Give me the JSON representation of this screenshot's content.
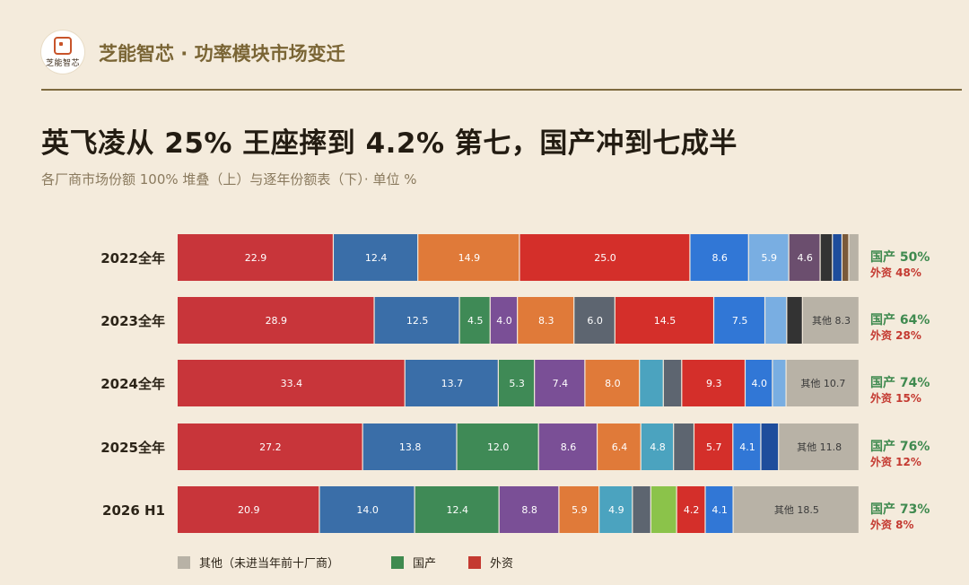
{
  "header": {
    "logo_text": "芝能智芯",
    "brand": "芝能智芯 · 功率模块市场变迁"
  },
  "title": "英飞凌从 25% 王座摔到 4.2% 第七，国产冲到七成半",
  "subtitle": "各厂商市场份额 100% 堆叠（上）与逐年份额表（下）· 单位 %",
  "colors": {
    "background": "#f4ebdc",
    "domestic_text": "#3f8a4f",
    "foreign_text": "#c43a31",
    "rule": "#7e6a3e",
    "segment_palette": {
      "red": "#c8353a",
      "blue": "#3a6ea8",
      "orange": "#e07a39",
      "red2": "#d42f2a",
      "blue2": "#3177d6",
      "lightblue": "#79aee2",
      "purple": "#7a4f96",
      "dark": "#333333",
      "navy": "#1e4d9c",
      "brown": "#7a5a3a",
      "gray": "#b8b2a6",
      "green": "#3f8a56",
      "slate": "#5d6570",
      "teal": "#4ba3bf",
      "lime": "#8bc34a",
      "mauve": "#6b4e6e"
    }
  },
  "chart_data": {
    "type": "bar",
    "orientation": "horizontal",
    "stacked": true,
    "normalized": true,
    "unit": "%",
    "categories": [
      "2022全年",
      "2023全年",
      "2024全年",
      "2025全年",
      "2026 H1"
    ],
    "rows": [
      {
        "category": "2022全年",
        "segments": [
          {
            "value": 22.9,
            "label": "22.9",
            "color": "red"
          },
          {
            "value": 12.4,
            "label": "12.4",
            "color": "blue"
          },
          {
            "value": 14.9,
            "label": "14.9",
            "color": "orange"
          },
          {
            "value": 25.0,
            "label": "25.0",
            "color": "red2"
          },
          {
            "value": 8.6,
            "label": "8.6",
            "color": "blue2"
          },
          {
            "value": 5.9,
            "label": "5.9",
            "color": "lightblue"
          },
          {
            "value": 4.6,
            "label": "4.6",
            "color": "mauve"
          },
          {
            "value": 1.8,
            "label": "",
            "color": "dark"
          },
          {
            "value": 1.4,
            "label": "",
            "color": "navy"
          },
          {
            "value": 1.0,
            "label": "",
            "color": "brown"
          },
          {
            "value": 1.5,
            "label": "",
            "color": "gray"
          }
        ],
        "domestic": "国产 50%",
        "foreign": "外资 48%"
      },
      {
        "category": "2023全年",
        "segments": [
          {
            "value": 28.9,
            "label": "28.9",
            "color": "red"
          },
          {
            "value": 12.5,
            "label": "12.5",
            "color": "blue"
          },
          {
            "value": 4.5,
            "label": "4.5",
            "color": "green"
          },
          {
            "value": 4.0,
            "label": "4.0",
            "color": "purple"
          },
          {
            "value": 8.3,
            "label": "8.3",
            "color": "orange"
          },
          {
            "value": 6.0,
            "label": "6.0",
            "color": "slate"
          },
          {
            "value": 14.5,
            "label": "14.5",
            "color": "red2"
          },
          {
            "value": 7.5,
            "label": "7.5",
            "color": "blue2"
          },
          {
            "value": 3.2,
            "label": "",
            "color": "lightblue"
          },
          {
            "value": 2.3,
            "label": "",
            "color": "dark"
          },
          {
            "value": 8.3,
            "label": "其他 8.3",
            "color": "gray"
          }
        ],
        "domestic": "国产 64%",
        "foreign": "外资 28%"
      },
      {
        "category": "2024全年",
        "segments": [
          {
            "value": 33.4,
            "label": "33.4",
            "color": "red"
          },
          {
            "value": 13.7,
            "label": "13.7",
            "color": "blue"
          },
          {
            "value": 5.3,
            "label": "5.3",
            "color": "green"
          },
          {
            "value": 7.4,
            "label": "7.4",
            "color": "purple"
          },
          {
            "value": 8.0,
            "label": "8.0",
            "color": "orange"
          },
          {
            "value": 3.5,
            "label": "",
            "color": "teal"
          },
          {
            "value": 2.7,
            "label": "",
            "color": "slate"
          },
          {
            "value": 9.3,
            "label": "9.3",
            "color": "red2"
          },
          {
            "value": 4.0,
            "label": "4.0",
            "color": "blue2"
          },
          {
            "value": 2.0,
            "label": "",
            "color": "lightblue"
          },
          {
            "value": 10.7,
            "label": "其他 10.7",
            "color": "gray"
          }
        ],
        "domestic": "国产 74%",
        "foreign": "外资 15%"
      },
      {
        "category": "2025全年",
        "segments": [
          {
            "value": 27.2,
            "label": "27.2",
            "color": "red"
          },
          {
            "value": 13.8,
            "label": "13.8",
            "color": "blue"
          },
          {
            "value": 12.0,
            "label": "12.0",
            "color": "green"
          },
          {
            "value": 8.6,
            "label": "8.6",
            "color": "purple"
          },
          {
            "value": 6.4,
            "label": "6.4",
            "color": "orange"
          },
          {
            "value": 4.8,
            "label": "4.8",
            "color": "teal"
          },
          {
            "value": 3.0,
            "label": "",
            "color": "slate"
          },
          {
            "value": 5.7,
            "label": "5.7",
            "color": "red2"
          },
          {
            "value": 4.1,
            "label": "4.1",
            "color": "blue2"
          },
          {
            "value": 2.6,
            "label": "",
            "color": "navy"
          },
          {
            "value": 11.8,
            "label": "其他 11.8",
            "color": "gray"
          }
        ],
        "domestic": "国产 76%",
        "foreign": "外资 12%"
      },
      {
        "category": "2026 H1",
        "segments": [
          {
            "value": 20.9,
            "label": "20.9",
            "color": "red"
          },
          {
            "value": 14.0,
            "label": "14.0",
            "color": "blue"
          },
          {
            "value": 12.4,
            "label": "12.4",
            "color": "green"
          },
          {
            "value": 8.8,
            "label": "8.8",
            "color": "purple"
          },
          {
            "value": 5.9,
            "label": "5.9",
            "color": "orange"
          },
          {
            "value": 4.9,
            "label": "4.9",
            "color": "teal"
          },
          {
            "value": 2.7,
            "label": "",
            "color": "slate"
          },
          {
            "value": 3.8,
            "label": "",
            "color": "lime"
          },
          {
            "value": 4.2,
            "label": "4.2",
            "color": "red2"
          },
          {
            "value": 4.1,
            "label": "4.1",
            "color": "blue2"
          },
          {
            "value": 18.5,
            "label": "其他 18.5",
            "color": "gray"
          }
        ],
        "domestic": "国产 73%",
        "foreign": "外资 8%"
      }
    ],
    "legend": [
      {
        "label": "其他（未进当年前十厂商）",
        "color": "#b8b2a6"
      },
      {
        "label": "国产",
        "color": "#3f8a4f"
      },
      {
        "label": "外资",
        "color": "#c43a31"
      }
    ],
    "legend_position": "bottom"
  }
}
